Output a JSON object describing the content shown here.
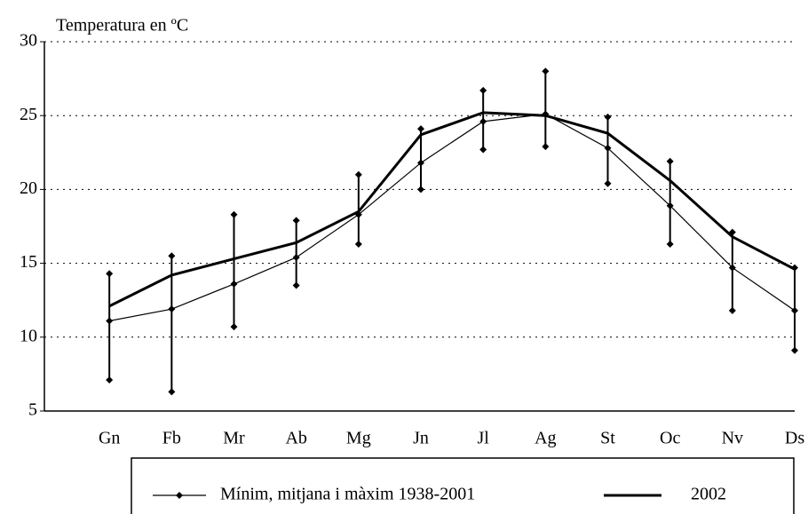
{
  "chart_data": {
    "type": "line",
    "y_label": "Temperatura en ºC",
    "categories": [
      "Gn",
      "Fb",
      "Mr",
      "Ab",
      "Mg",
      "Jn",
      "Jl",
      "Ag",
      "St",
      "Oc",
      "Nv",
      "Ds"
    ],
    "series": [
      {
        "name": "Mínim, mitjana i màxim 1938-2001",
        "color": "#000000",
        "values": [
          11.1,
          11.9,
          13.6,
          15.4,
          18.3,
          21.8,
          24.6,
          25.1,
          22.8,
          18.9,
          14.7,
          11.8
        ],
        "low": [
          7.1,
          6.3,
          10.7,
          13.5,
          16.3,
          20.0,
          22.7,
          22.9,
          20.4,
          16.3,
          11.8,
          9.1
        ],
        "high": [
          14.3,
          15.5,
          18.3,
          17.9,
          21.0,
          24.1,
          26.7,
          28.0,
          24.9,
          21.9,
          17.1,
          14.7
        ]
      },
      {
        "name": "2002",
        "color": "#000000",
        "values": [
          12.1,
          14.2,
          15.3,
          16.4,
          18.5,
          23.7,
          25.2,
          25.0,
          23.8,
          20.6,
          16.8,
          14.6
        ]
      }
    ],
    "ylim": [
      5,
      30
    ],
    "yticks": [
      5,
      10,
      15,
      20,
      25,
      30
    ],
    "grid": true
  }
}
